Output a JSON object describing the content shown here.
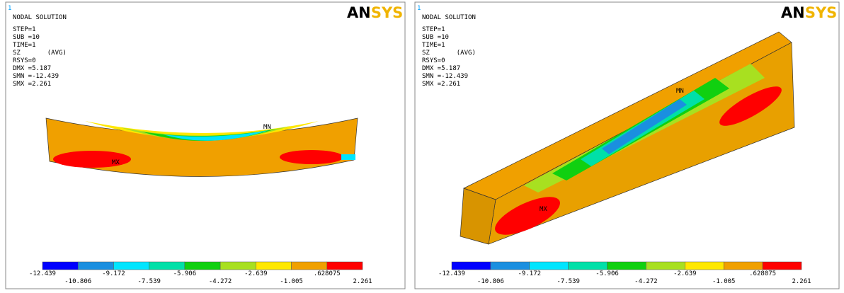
{
  "panels": [
    {
      "corner_label": "1",
      "title": "NODAL SOLUTION",
      "info": [
        "STEP=1",
        "SUB =10",
        "TIME=1",
        "SZ       (AVG)",
        "RSYS=0",
        "DMX =5.187",
        "SMN =-12.439",
        "SMX =2.261"
      ],
      "logo": "ANSYS",
      "min_marker": "MN",
      "max_marker": "MX",
      "legend": {
        "colors": [
          "#0000ff",
          "#1a8fe0",
          "#00e5ff",
          "#00e0a8",
          "#10d010",
          "#a8e020",
          "#ffe800",
          "#f0a000",
          "#ff0000"
        ],
        "labels": [
          "-12.439",
          "-10.806",
          "-9.172",
          "-7.539",
          "-5.906",
          "-4.272",
          "-2.639",
          "-1.005",
          ".628075",
          "2.261"
        ]
      }
    },
    {
      "corner_label": "1",
      "title": "NODAL SOLUTION",
      "info": [
        "STEP=1",
        "SUB =10",
        "TIME=1",
        "SZ       (AVG)",
        "RSYS=0",
        "DMX =5.187",
        "SMN =-12.439",
        "SMX =2.261"
      ],
      "logo": "ANSYS",
      "min_marker": "MN",
      "max_marker": "MX",
      "legend": {
        "colors": [
          "#0000ff",
          "#1a8fe0",
          "#00e5ff",
          "#00e0a8",
          "#10d010",
          "#a8e020",
          "#ffe800",
          "#f0a000",
          "#ff0000"
        ],
        "labels": [
          "-12.439",
          "-10.806",
          "-9.172",
          "-7.539",
          "-5.906",
          "-4.272",
          "-2.639",
          "-1.005",
          ".628075",
          "2.261"
        ]
      }
    }
  ]
}
